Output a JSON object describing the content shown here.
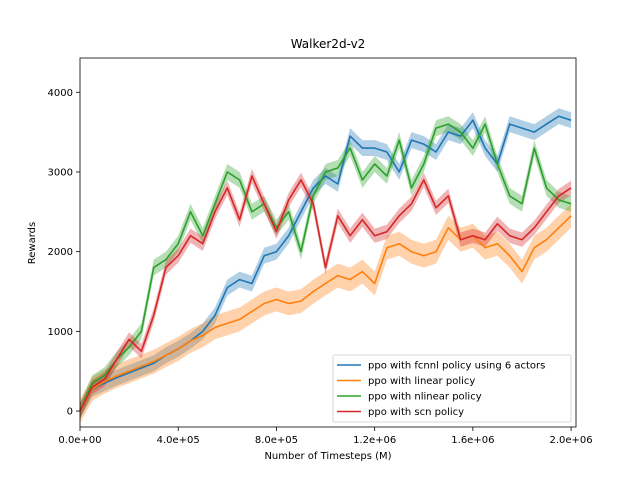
{
  "chart_data": {
    "type": "line",
    "title": "Walker2d-v2",
    "xlabel": "Number of Timesteps (M)",
    "ylabel": "Rewards",
    "xlim": [
      0,
      2020000
    ],
    "ylim": [
      -200,
      4430
    ],
    "xticks": [
      0,
      400000,
      800000,
      1200000,
      1600000,
      2000000
    ],
    "xtick_labels": [
      "0.0e+00",
      "4.0e+05",
      "8.0e+05",
      "1.2e+06",
      "1.6e+06",
      "2.0e+06"
    ],
    "yticks": [
      0,
      1000,
      2000,
      3000,
      4000
    ],
    "ytick_labels": [
      "0",
      "1000",
      "2000",
      "3000",
      "4000"
    ],
    "grid": false,
    "legend_position": "lower-right",
    "series": [
      {
        "name": "ppo with fcnnl policy using 6 actors",
        "color": "#1f77b4",
        "band": 100,
        "x": [
          0,
          50000,
          100000,
          150000,
          200000,
          250000,
          300000,
          350000,
          400000,
          450000,
          500000,
          550000,
          600000,
          650000,
          700000,
          750000,
          800000,
          850000,
          900000,
          950000,
          1000000,
          1050000,
          1100000,
          1150000,
          1200000,
          1250000,
          1300000,
          1350000,
          1400000,
          1450000,
          1500000,
          1550000,
          1600000,
          1650000,
          1700000,
          1750000,
          1800000,
          1850000,
          1900000,
          1950000,
          2000000
        ],
        "y": [
          0,
          280,
          350,
          420,
          480,
          540,
          600,
          700,
          780,
          880,
          1000,
          1200,
          1550,
          1650,
          1600,
          1950,
          2000,
          2200,
          2500,
          2800,
          2950,
          2850,
          3450,
          3300,
          3300,
          3250,
          3000,
          3400,
          3350,
          3250,
          3500,
          3450,
          3650,
          3300,
          3100,
          3600,
          3550,
          3500,
          3600,
          3700,
          3650
        ]
      },
      {
        "name": "ppo with linear policy",
        "color": "#ff7f0e",
        "band": 150,
        "x": [
          0,
          50000,
          100000,
          150000,
          200000,
          250000,
          300000,
          350000,
          400000,
          450000,
          500000,
          550000,
          600000,
          650000,
          700000,
          750000,
          800000,
          850000,
          900000,
          950000,
          1000000,
          1050000,
          1100000,
          1150000,
          1200000,
          1250000,
          1300000,
          1350000,
          1400000,
          1450000,
          1500000,
          1550000,
          1600000,
          1650000,
          1700000,
          1750000,
          1800000,
          1850000,
          1900000,
          1950000,
          2000000
        ],
        "y": [
          0,
          280,
          370,
          440,
          500,
          560,
          620,
          700,
          780,
          880,
          950,
          1050,
          1100,
          1150,
          1250,
          1350,
          1400,
          1350,
          1380,
          1500,
          1600,
          1700,
          1650,
          1750,
          1600,
          2050,
          2100,
          2000,
          1950,
          2000,
          2300,
          2150,
          2200,
          2050,
          2100,
          1950,
          1750,
          2050,
          2150,
          2300,
          2450
        ]
      },
      {
        "name": "ppo with nlinear policy",
        "color": "#2ca02c",
        "band": 100,
        "x": [
          0,
          50000,
          100000,
          150000,
          200000,
          250000,
          300000,
          350000,
          400000,
          450000,
          500000,
          550000,
          600000,
          650000,
          700000,
          750000,
          800000,
          850000,
          900000,
          950000,
          1000000,
          1050000,
          1100000,
          1150000,
          1200000,
          1250000,
          1300000,
          1350000,
          1400000,
          1450000,
          1500000,
          1550000,
          1600000,
          1650000,
          1700000,
          1750000,
          1800000,
          1850000,
          1900000,
          1950000,
          2000000
        ],
        "y": [
          0,
          350,
          450,
          650,
          800,
          1000,
          1800,
          1900,
          2100,
          2500,
          2200,
          2600,
          3000,
          2900,
          2500,
          2600,
          2300,
          2500,
          2000,
          2700,
          3000,
          3050,
          3300,
          2900,
          3100,
          2950,
          3400,
          2800,
          3100,
          3550,
          3600,
          3500,
          3300,
          3600,
          3100,
          2700,
          2600,
          3300,
          2800,
          2650,
          2600
        ]
      },
      {
        "name": "ppo with scn policy",
        "color": "#d62728",
        "band": 90,
        "x": [
          0,
          50000,
          100000,
          150000,
          200000,
          250000,
          300000,
          350000,
          400000,
          450000,
          500000,
          550000,
          600000,
          650000,
          700000,
          750000,
          800000,
          850000,
          900000,
          950000,
          1000000,
          1050000,
          1100000,
          1150000,
          1200000,
          1250000,
          1300000,
          1350000,
          1400000,
          1450000,
          1500000,
          1550000,
          1600000,
          1650000,
          1700000,
          1750000,
          1800000,
          1850000,
          1900000,
          1950000,
          2000000
        ],
        "y": [
          0,
          300,
          400,
          650,
          900,
          750,
          1200,
          1800,
          1950,
          2200,
          2100,
          2500,
          2800,
          2400,
          2950,
          2600,
          2250,
          2650,
          2900,
          2600,
          1800,
          2450,
          2200,
          2400,
          2200,
          2250,
          2450,
          2600,
          2900,
          2550,
          2700,
          2150,
          2200,
          2150,
          2350,
          2200,
          2150,
          2300,
          2500,
          2700,
          2800
        ]
      }
    ]
  }
}
